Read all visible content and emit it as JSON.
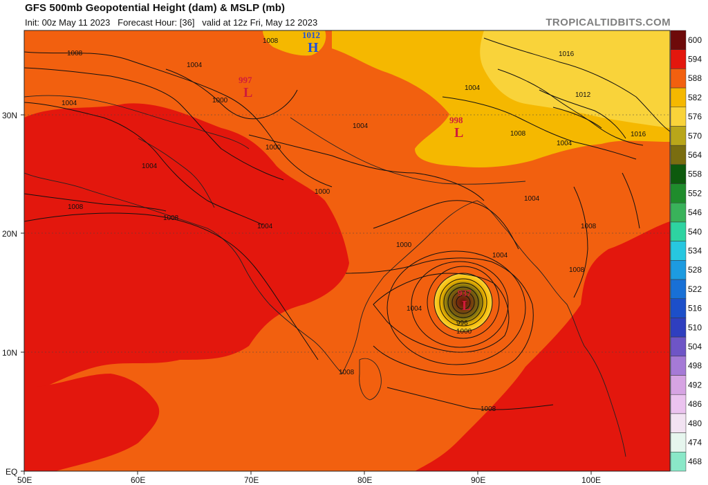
{
  "header": {
    "title": "GFS 500mb Geopotential Height (dam) & MSLP (mb)",
    "subtitle": "Init: 00z May 11 2023   Forecast Hour: [36]   valid at 12z Fri, May 12 2023",
    "credit": "TROPICALTIDBITS.COM"
  },
  "axes": {
    "x_ticks": [
      "50E",
      "60E",
      "70E",
      "80E",
      "90E",
      "100E"
    ],
    "y_ticks": [
      "EQ",
      "10N",
      "20N",
      "30N"
    ]
  },
  "colorbar": {
    "levels": [
      "600",
      "594",
      "588",
      "582",
      "576",
      "570",
      "564",
      "558",
      "552",
      "546",
      "540",
      "534",
      "528",
      "522",
      "516",
      "510",
      "504",
      "498",
      "492",
      "486",
      "480",
      "474",
      "468"
    ],
    "colors": [
      "#6e0a0a",
      "#e3170d",
      "#f2600f",
      "#f5b800",
      "#f9d33a",
      "#b9a61a",
      "#7a6d10",
      "#0d5a0d",
      "#1f8c2c",
      "#39b25a",
      "#2ed3a1",
      "#27c7e0",
      "#1d9be0",
      "#1870d6",
      "#1c4fc9",
      "#2f3fbf",
      "#6e55c6",
      "#a57ad6",
      "#d6a4e3",
      "#ebc3ef",
      "#f2e3f2",
      "#e6f6ee",
      "#8ae8c8"
    ]
  },
  "map_fill": {
    "color_588": "#f2600f",
    "color_594": "#e3170d",
    "color_582": "#f5b800",
    "color_576": "#f9d33a",
    "color_574": "#b9a61a"
  },
  "pressure_centers": [
    {
      "letter": "H",
      "value": "1012",
      "color": "#1f4fd8"
    },
    {
      "letter": "L",
      "value": "997",
      "color": "#d01c3a"
    },
    {
      "letter": "L",
      "value": "998",
      "color": "#d01c3a"
    },
    {
      "letter": "L",
      "value": "937",
      "color": "#d01c3a"
    }
  ],
  "isobar_labels": [
    "1008",
    "1004",
    "1000",
    "1004",
    "1000",
    "1004",
    "1004",
    "1000",
    "1008",
    "1008",
    "1004",
    "1004",
    "1000",
    "1004",
    "1008",
    "1016",
    "1012",
    "1008",
    "1004",
    "1016",
    "1004",
    "1008",
    "1008",
    "1004",
    "996",
    "1000",
    "1008",
    "1008"
  ]
}
